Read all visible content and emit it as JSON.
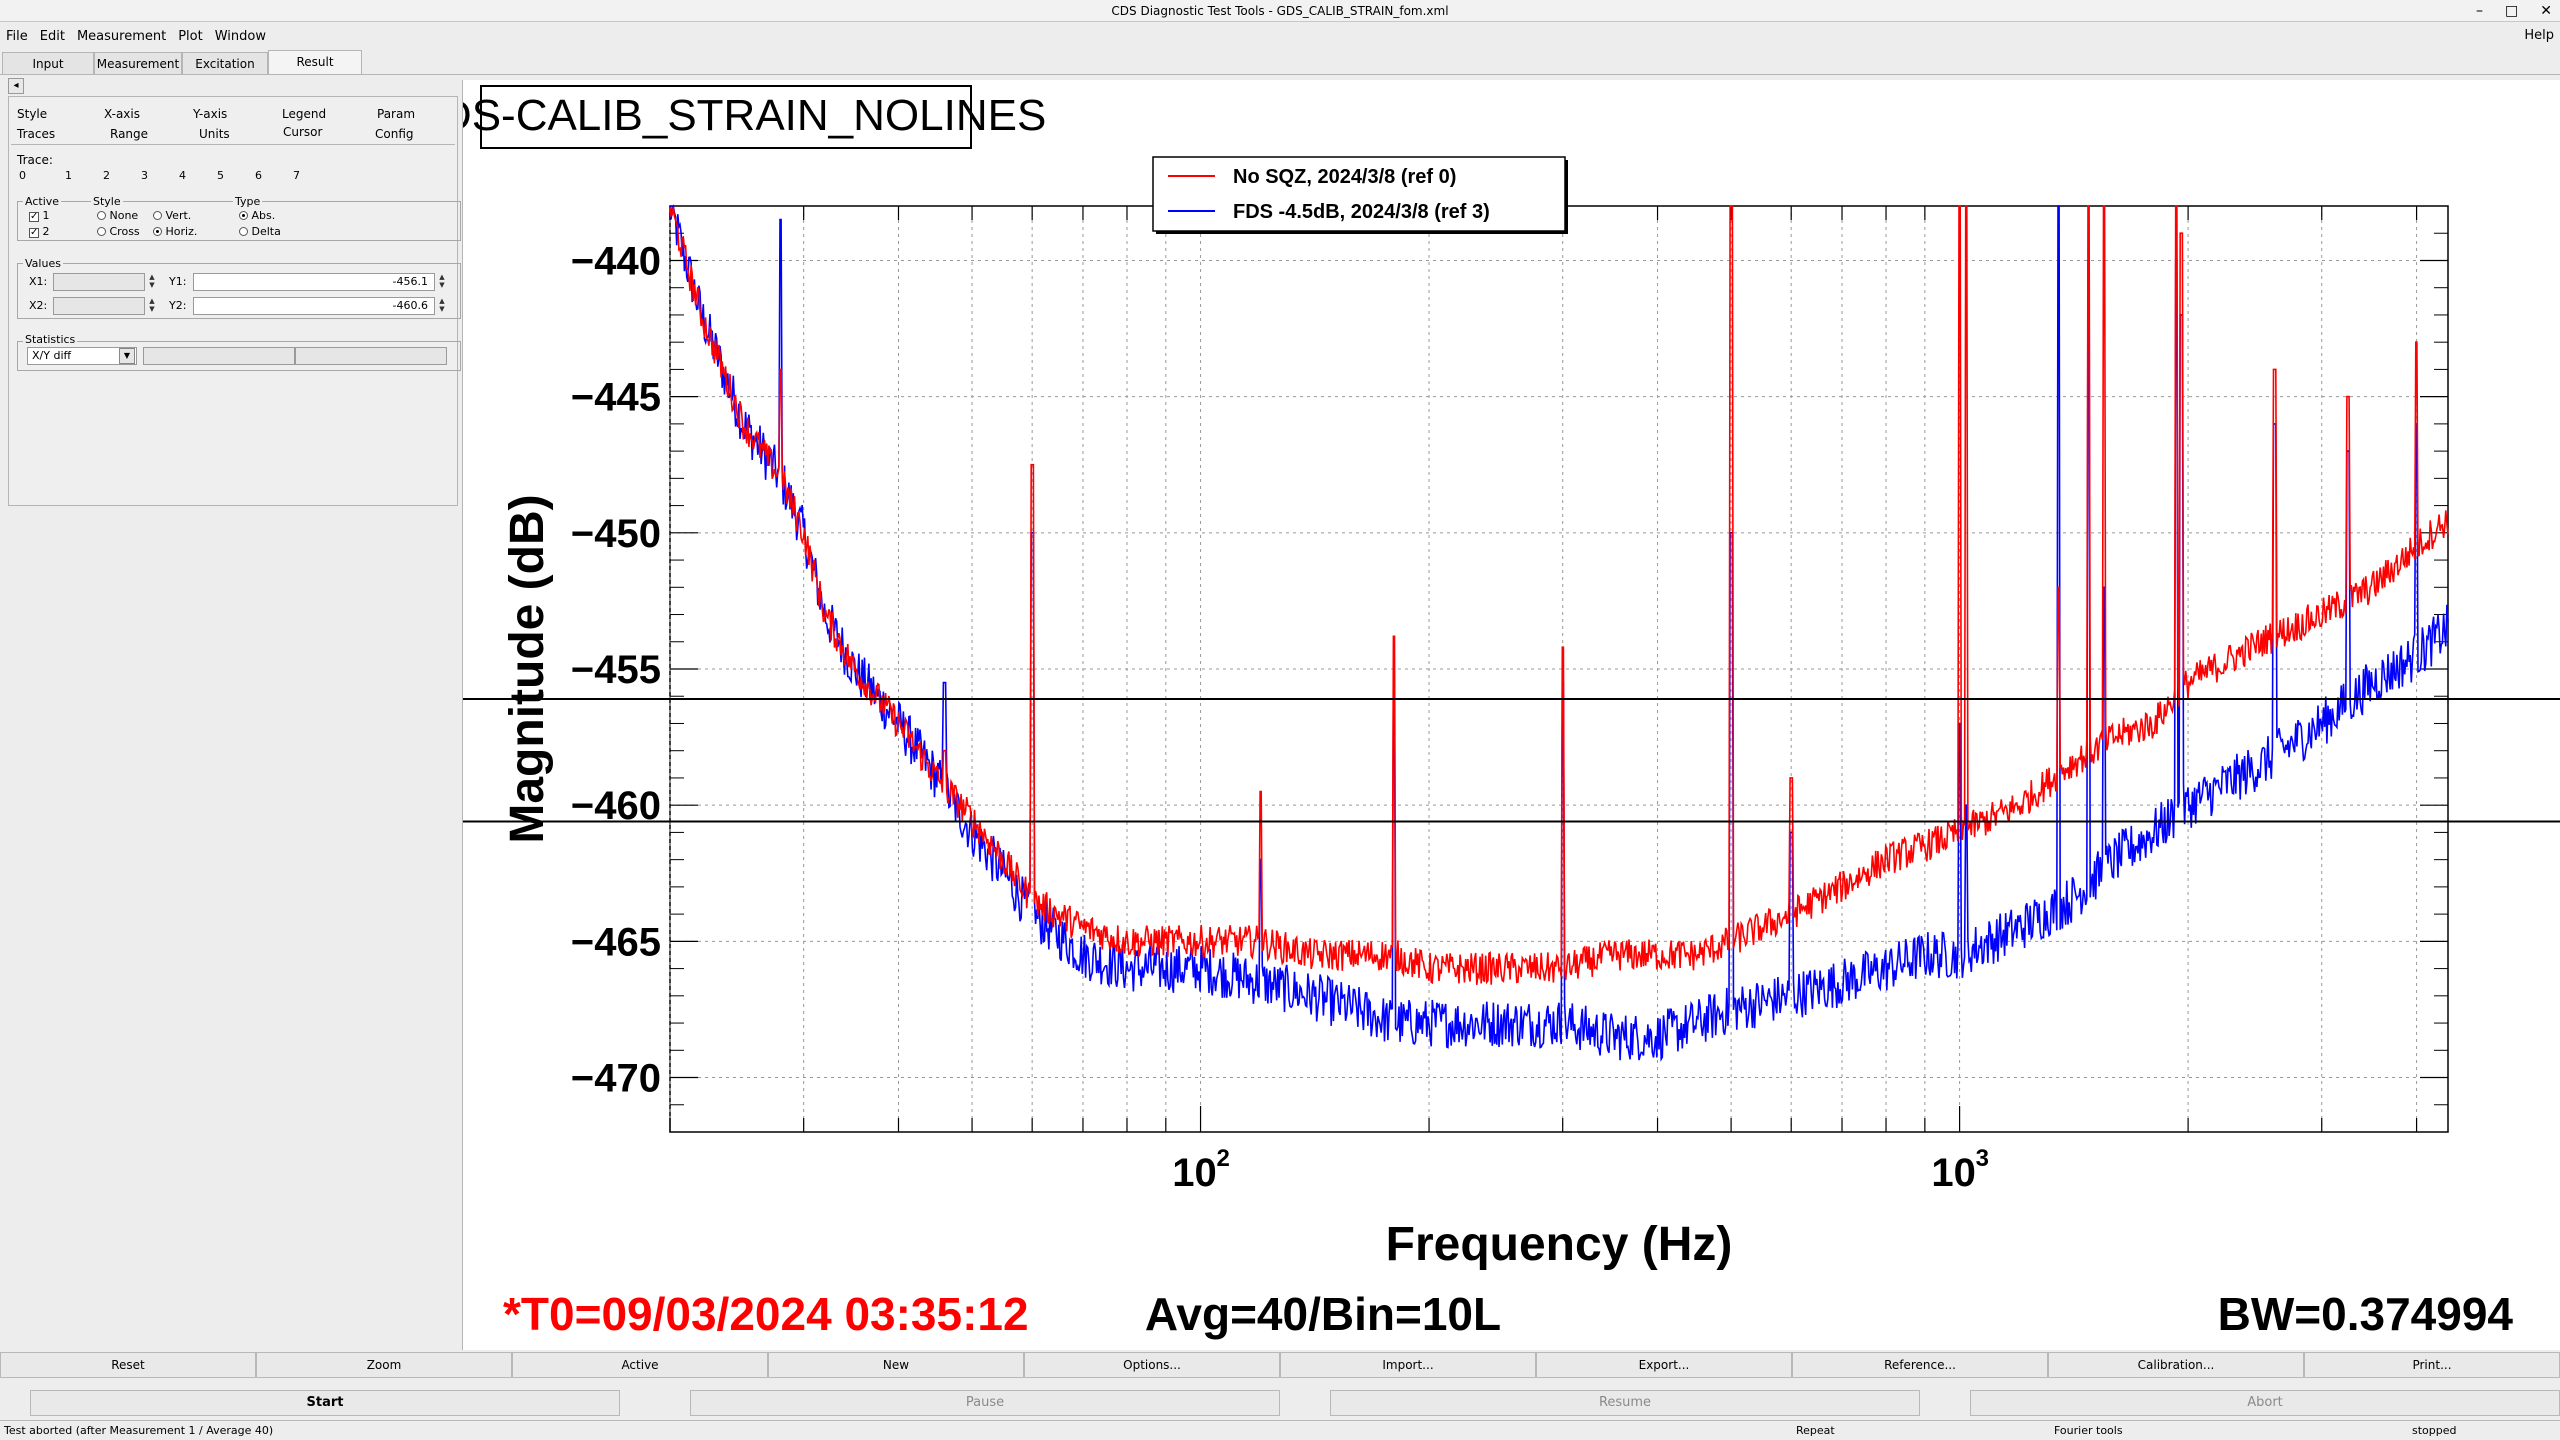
{
  "window": {
    "title": "CDS Diagnostic Test Tools - GDS_CALIB_STRAIN_fom.xml",
    "controls": [
      "–",
      "□",
      "✕"
    ]
  },
  "menu": [
    "File",
    "Edit",
    "Measurement",
    "Plot",
    "Window"
  ],
  "help": "Help",
  "top_tabs": [
    "Input",
    "Measurement",
    "Excitation",
    "Result"
  ],
  "collapse_arrow": "◂",
  "option_tabs_row1": [
    "Style",
    "X-axis",
    "Y-axis",
    "Legend",
    "Param"
  ],
  "option_tabs_row2": [
    "Traces",
    "Range",
    "Units",
    "Cursor",
    "Config"
  ],
  "trace_label": "Trace:",
  "trace_tabs": [
    "0",
    "1",
    "2",
    "3",
    "4",
    "5",
    "6",
    "7"
  ],
  "active": {
    "title": "Active",
    "items": [
      "1",
      "2"
    ]
  },
  "style": {
    "title": "Style",
    "none": "None",
    "vert": "Vert.",
    "cross": "Cross",
    "horiz": "Horiz."
  },
  "type": {
    "title": "Type",
    "abs": "Abs.",
    "delta": "Delta"
  },
  "values": {
    "title": "Values",
    "x1_label": "X1:",
    "x2_label": "X2:",
    "y1_label": "Y1:",
    "y2_label": "Y2:",
    "y1": "-456.1",
    "y2": "-460.6"
  },
  "statistics": {
    "title": "Statistics",
    "select": "X/Y diff"
  },
  "plot": {
    "title": "GDS-CALIB_STRAIN_NOLINES",
    "legend": [
      {
        "label": "No SQZ, 2024/3/8 (ref 0)",
        "color": "#ff0000"
      },
      {
        "label": "FDS -4.5dB, 2024/3/8 (ref 3)",
        "color": "#0000ff"
      }
    ],
    "ylabel": "Magnitude (dB)",
    "xlabel": "Frequency (Hz)",
    "yticks": [
      "−440",
      "−445",
      "−450",
      "−455",
      "−460",
      "−465",
      "−470"
    ],
    "xtick_base": "10",
    "xtick_exps": [
      "2",
      "3"
    ],
    "t0": "*T0=09/03/2024 03:35:12",
    "avg": "Avg=40/Bin=10L",
    "bw": "BW=0.374994"
  },
  "chart_data": {
    "type": "line",
    "xscale": "log",
    "xlim": [
      20,
      4400
    ],
    "ylim": [
      -472,
      -438
    ],
    "grid": true,
    "legend_position": "top-center",
    "cursors_y": [
      -456.1,
      -460.6
    ],
    "series": [
      {
        "name": "No SQZ, 2024/3/8 (ref 0)",
        "color": "#ff0000",
        "x": [
          20,
          22,
          25,
          28,
          30,
          32,
          35,
          40,
          45,
          50,
          55,
          60,
          70,
          80,
          90,
          100,
          120,
          140,
          160,
          180,
          200,
          250,
          300,
          350,
          400,
          450,
          500,
          600,
          700,
          800,
          900,
          1000,
          1200,
          1400,
          1600,
          1800,
          2000,
          2500,
          3000,
          3500,
          4000,
          4400
        ],
        "y": [
          -438,
          -442,
          -446,
          -448,
          -450,
          -453,
          -455,
          -457,
          -459,
          -460.5,
          -462,
          -463.5,
          -464.5,
          -465,
          -465,
          -465,
          -465,
          -465.5,
          -465.5,
          -465.5,
          -466,
          -466,
          -466,
          -465.5,
          -465.5,
          -465.5,
          -465,
          -464,
          -463,
          -462,
          -461.5,
          -461,
          -460,
          -458.5,
          -457.5,
          -457,
          -455.5,
          -454,
          -453,
          -452,
          -450.5,
          -449.5
        ]
      },
      {
        "name": "FDS -4.5dB, 2024/3/8 (ref 3)",
        "color": "#0000ff",
        "x": [
          20,
          22,
          25,
          28,
          30,
          32,
          35,
          40,
          45,
          50,
          55,
          60,
          70,
          80,
          90,
          100,
          120,
          140,
          160,
          180,
          200,
          250,
          300,
          350,
          400,
          450,
          500,
          600,
          700,
          800,
          900,
          1000,
          1200,
          1400,
          1600,
          1800,
          2000,
          2500,
          3000,
          3500,
          4000,
          4400
        ],
        "y": [
          -438,
          -442,
          -446,
          -448,
          -450,
          -453,
          -455,
          -457,
          -459,
          -461,
          -462.5,
          -464,
          -465.5,
          -466,
          -466,
          -466,
          -466.5,
          -467,
          -467.5,
          -468,
          -468,
          -468,
          -468,
          -468.5,
          -468.5,
          -468,
          -467.5,
          -467,
          -466.5,
          -466,
          -465.5,
          -465.5,
          -464.5,
          -463.5,
          -462,
          -461,
          -460,
          -458.5,
          -457,
          -455.5,
          -454.5,
          -453.5
        ]
      }
    ],
    "peaks": [
      {
        "f": 28,
        "red": -444,
        "blue": -438.5
      },
      {
        "f": 46,
        "red": -458,
        "blue": -455.5
      },
      {
        "f": 60,
        "red": -447.5,
        "blue": -450
      },
      {
        "f": 120,
        "red": -459.5,
        "blue": -462
      },
      {
        "f": 180,
        "red": -453.8,
        "blue": -455.5
      },
      {
        "f": 300,
        "red": -454.2,
        "blue": -455.5
      },
      {
        "f": 500,
        "red": -438,
        "blue": -450
      },
      {
        "f": 600,
        "red": -459,
        "blue": -461
      },
      {
        "f": 1000,
        "red": -438,
        "blue": -457
      },
      {
        "f": 1020,
        "red": -438,
        "blue": -460
      },
      {
        "f": 1350,
        "red": -452,
        "blue": -438
      },
      {
        "f": 1480,
        "red": -438,
        "blue": -440
      },
      {
        "f": 1550,
        "red": -438,
        "blue": -452
      },
      {
        "f": 1930,
        "red": -438,
        "blue": -440
      },
      {
        "f": 1960,
        "red": -439,
        "blue": -442
      },
      {
        "f": 2600,
        "red": -444,
        "blue": -446
      },
      {
        "f": 3250,
        "red": -445,
        "blue": -447
      },
      {
        "f": 4000,
        "red": -443,
        "blue": -446
      }
    ]
  },
  "buttons": [
    "Reset",
    "Zoom",
    "Active",
    "New",
    "Options...",
    "Import...",
    "Export...",
    "Reference...",
    "Calibration...",
    "Print..."
  ],
  "run_buttons": [
    "Start",
    "Pause",
    "Resume",
    "Abort"
  ],
  "status": {
    "message": "Test aborted (after Measurement 1 / Average 40)",
    "repeat": "Repeat",
    "tool": "Fourier tools",
    "state": "stopped"
  }
}
